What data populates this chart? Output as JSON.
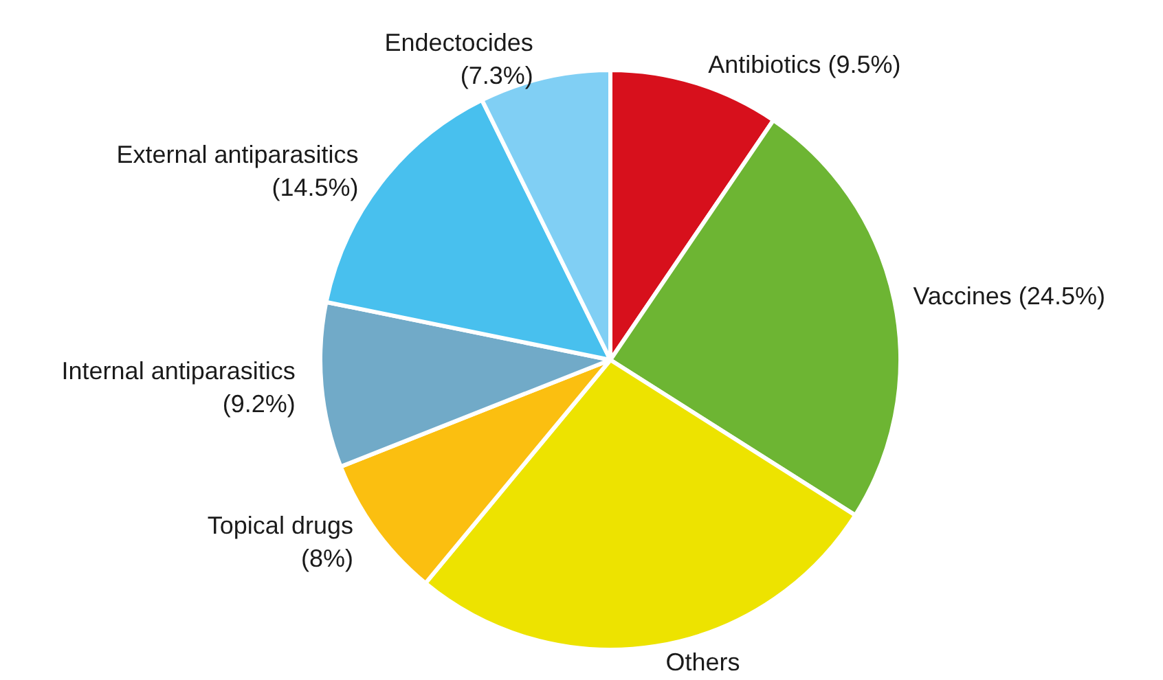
{
  "chart_data": {
    "type": "pie",
    "categories": [
      "Antibiotics",
      "Vaccines",
      "Others",
      "Topical drugs",
      "Internal antiparasitics",
      "External antiparasitics",
      "Endectocides"
    ],
    "values": [
      9.5,
      24.5,
      27,
      8,
      9.2,
      14.5,
      7.3
    ],
    "value_labels": [
      "(9.5%)",
      "(24.5%)",
      null,
      "(8%)",
      "(9.2%)",
      "(14.5%)",
      "(7.3%)"
    ],
    "colors": [
      "#d7101c",
      "#6db533",
      "#ede300",
      "#fbbf10",
      "#71aac8",
      "#48c0ee",
      "#80cff4"
    ],
    "legend": false
  }
}
